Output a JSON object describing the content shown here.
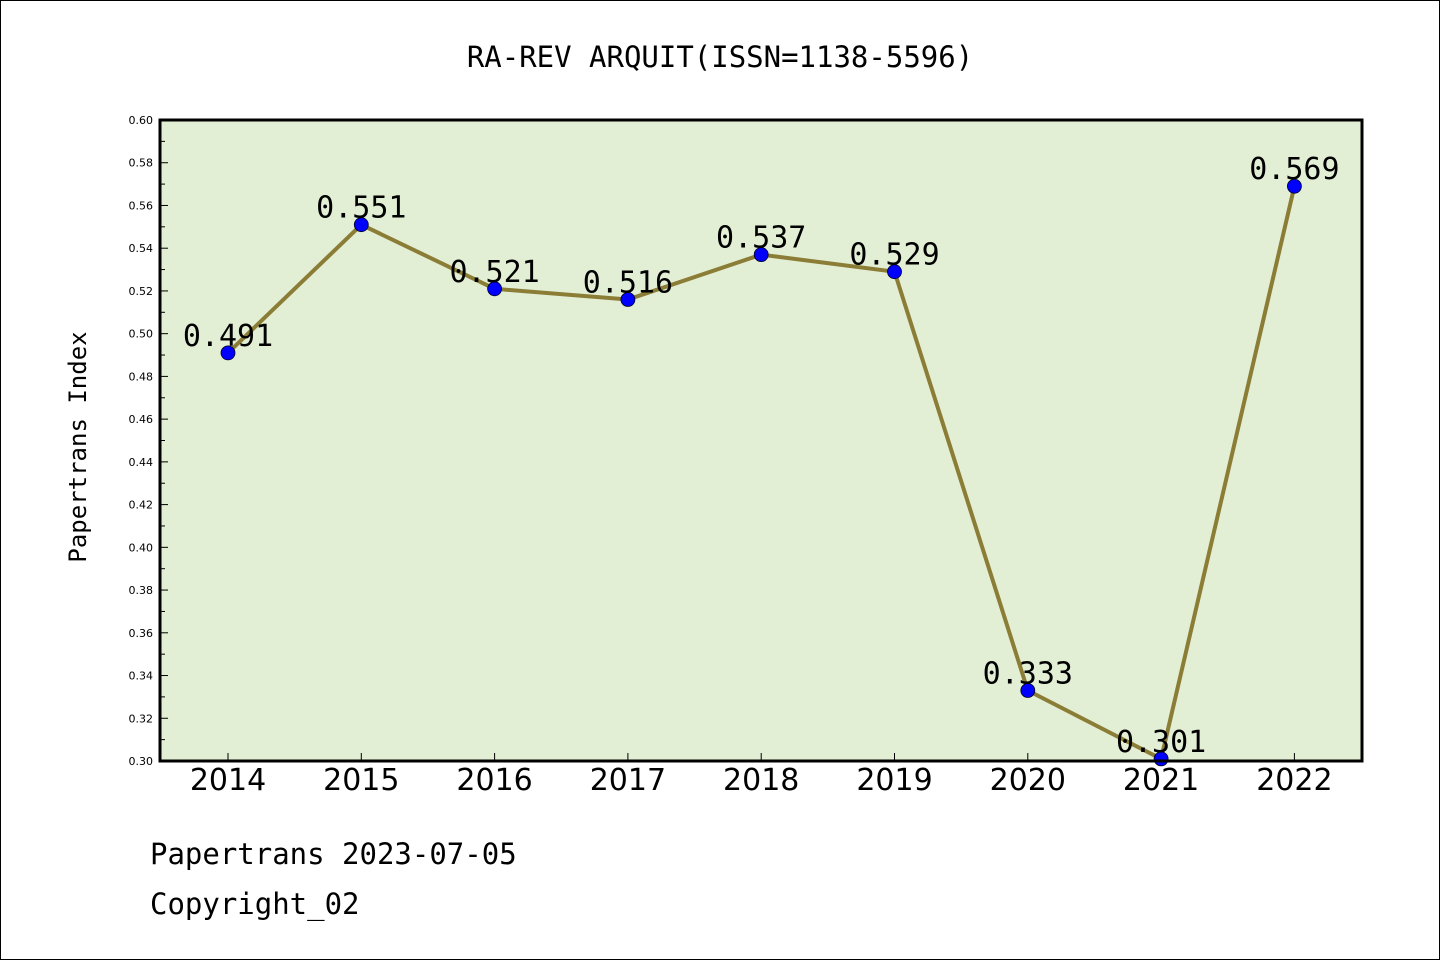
{
  "chart_data": {
    "type": "line",
    "title": "RA-REV ARQUIT(ISSN=1138-5596)",
    "xlabel": "",
    "ylabel": "Papertrans Index",
    "categories": [
      "2014",
      "2015",
      "2016",
      "2017",
      "2018",
      "2019",
      "2020",
      "2021",
      "2022"
    ],
    "series": [
      {
        "values": [
          0.491,
          0.551,
          0.521,
          0.516,
          0.537,
          0.529,
          0.333,
          0.301,
          0.569
        ],
        "data_labels": [
          "0.491",
          "0.551",
          "0.521",
          "0.516",
          "0.537",
          "0.529",
          "0.333",
          "0.301",
          "0.569"
        ]
      }
    ],
    "ylim": [
      0.3,
      0.6
    ],
    "yticks": [
      "0.30",
      "0.32",
      "0.34",
      "0.36",
      "0.38",
      "0.40",
      "0.42",
      "0.44",
      "0.46",
      "0.48",
      "0.50",
      "0.52",
      "0.54",
      "0.56",
      "0.58",
      "0.60"
    ],
    "grid": false,
    "legend": "none",
    "colors": {
      "plot_background": "#e2efd5",
      "line": "#8b7d35",
      "marker": "#0000ff"
    }
  },
  "footer": {
    "line1": "Papertrans 2023-07-05",
    "line2": "Copyright_02"
  }
}
